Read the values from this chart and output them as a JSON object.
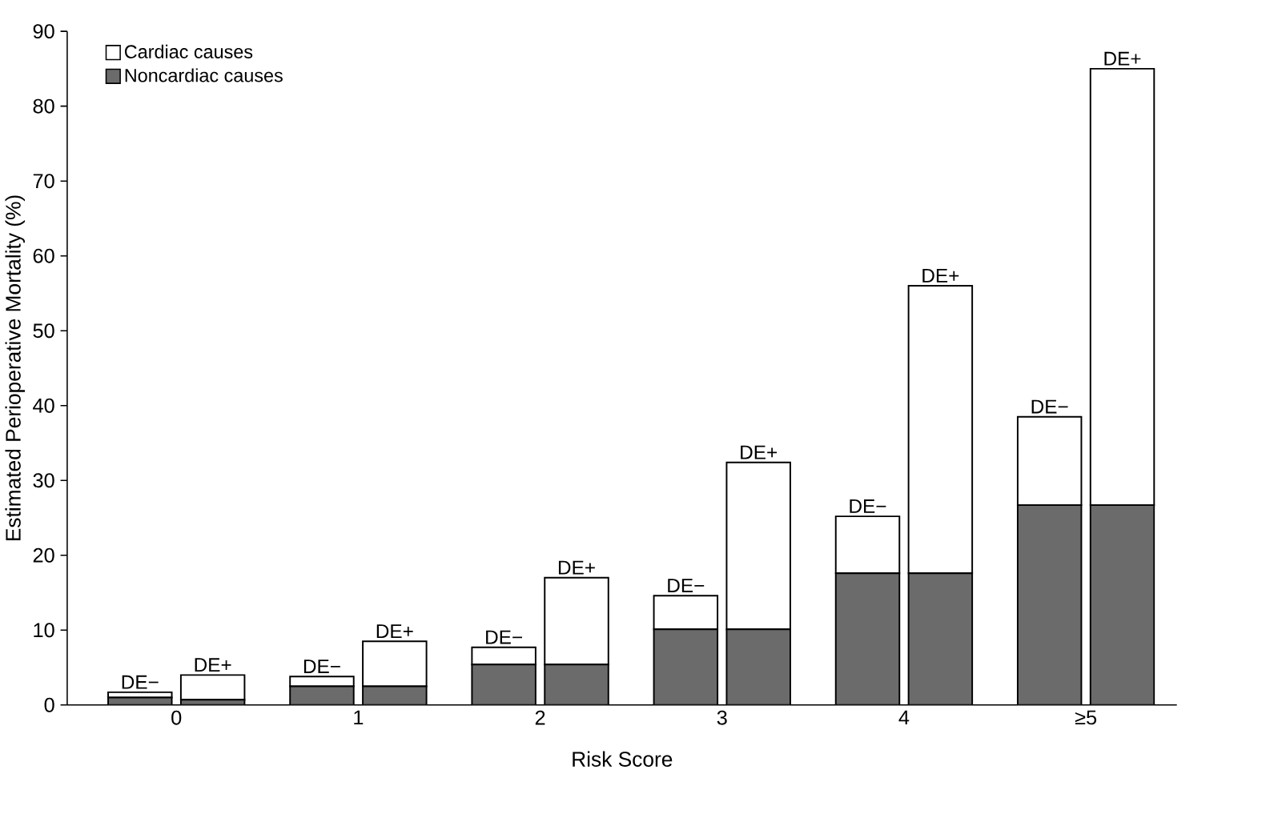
{
  "chart_data": {
    "type": "bar",
    "stacked": true,
    "xlabel": "Risk Score",
    "ylabel": "Estimated Perioperative Mortality (%)",
    "x": [
      -0.2,
      0.2,
      0.8,
      1.2,
      1.8,
      2.2,
      2.8,
      3.2,
      3.8,
      4.2,
      4.8,
      5.2
    ],
    "xlim": [
      -0.6,
      5.5
    ],
    "xticks": [
      {
        "value": 0,
        "label": "0"
      },
      {
        "value": 1,
        "label": "1"
      },
      {
        "value": 2,
        "label": "2"
      },
      {
        "value": 3,
        "label": "3"
      },
      {
        "value": 4,
        "label": "4"
      },
      {
        "value": 5,
        "label": "≥5"
      }
    ],
    "ylim": [
      0,
      90
    ],
    "yticks": [
      0,
      10,
      20,
      30,
      40,
      50,
      60,
      70,
      80,
      90
    ],
    "series": [
      {
        "name": "Noncardiac causes",
        "color": "#6b6b6b",
        "values": [
          1.0,
          0.7,
          2.5,
          2.5,
          5.4,
          5.4,
          10.1,
          10.1,
          17.6,
          17.6,
          26.7,
          26.7
        ]
      },
      {
        "name": "Cardiac causes",
        "color": "#ffffff",
        "values": [
          0.7,
          3.3,
          1.3,
          6.0,
          2.3,
          11.6,
          4.5,
          22.3,
          7.6,
          38.4,
          11.8,
          58.3
        ]
      }
    ],
    "legend": "top left",
    "grid": false,
    "annotations": [
      {
        "text": "DE−",
        "x": -0.2,
        "y": 1.7
      },
      {
        "text": "DE+",
        "x": 0.2,
        "y": 4.0
      },
      {
        "text": "DE−",
        "x": 0.8,
        "y": 3.8
      },
      {
        "text": "DE+",
        "x": 1.2,
        "y": 8.5
      },
      {
        "text": "DE−",
        "x": 1.8,
        "y": 7.7
      },
      {
        "text": "DE+",
        "x": 2.2,
        "y": 17.0
      },
      {
        "text": "DE−",
        "x": 2.8,
        "y": 14.6
      },
      {
        "text": "DE+",
        "x": 3.2,
        "y": 32.4
      },
      {
        "text": "DE−",
        "x": 3.8,
        "y": 25.2
      },
      {
        "text": "DE+",
        "x": 4.2,
        "y": 56.0
      },
      {
        "text": "DE−",
        "x": 4.8,
        "y": 38.5
      },
      {
        "text": "DE+",
        "x": 5.2,
        "y": 85.0
      }
    ]
  }
}
